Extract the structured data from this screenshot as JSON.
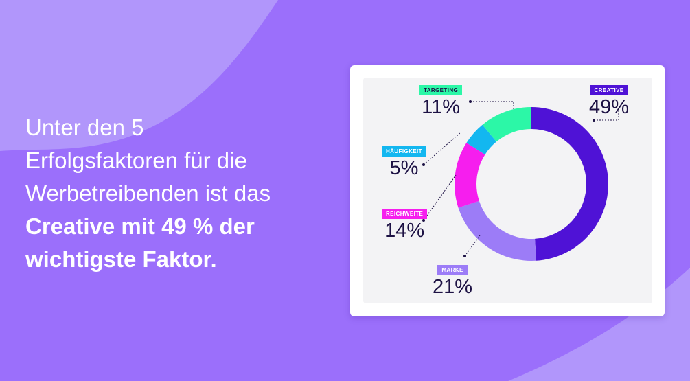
{
  "headline": {
    "line1": "Unter den 5",
    "line2": "Erfolgsfaktoren für die",
    "line3": "Werbetreibenden ist das",
    "line4": "Creative mit 49 % der",
    "line5": "wichtigste Faktor."
  },
  "colors": {
    "background": "#9b6ffb",
    "background_light": "#b196fb",
    "text_dark": "#1d1244",
    "card": "#ffffff",
    "panel": "#f3f3f5"
  },
  "chart_data": {
    "type": "pie",
    "style": "donut",
    "unit": "%",
    "slices": [
      {
        "label": "CREATIVE",
        "value": 49,
        "value_label": "49%",
        "color": "#4f12d6",
        "tag_text": "#ffffff"
      },
      {
        "label": "MARKE",
        "value": 21,
        "value_label": "21%",
        "color": "#9c7cf7",
        "tag_text": "#ffffff"
      },
      {
        "label": "REICHWEITE",
        "value": 14,
        "value_label": "14%",
        "color": "#f61eee",
        "tag_text": "#ffffff"
      },
      {
        "label": "HÄUFIGKEIT",
        "value": 5,
        "value_label": "5%",
        "color": "#13b7f0",
        "tag_text": "#ffffff"
      },
      {
        "label": "TARGETING",
        "value": 11,
        "value_label": "11%",
        "color": "#2cf7a7",
        "tag_text": "#1d1244"
      }
    ]
  }
}
